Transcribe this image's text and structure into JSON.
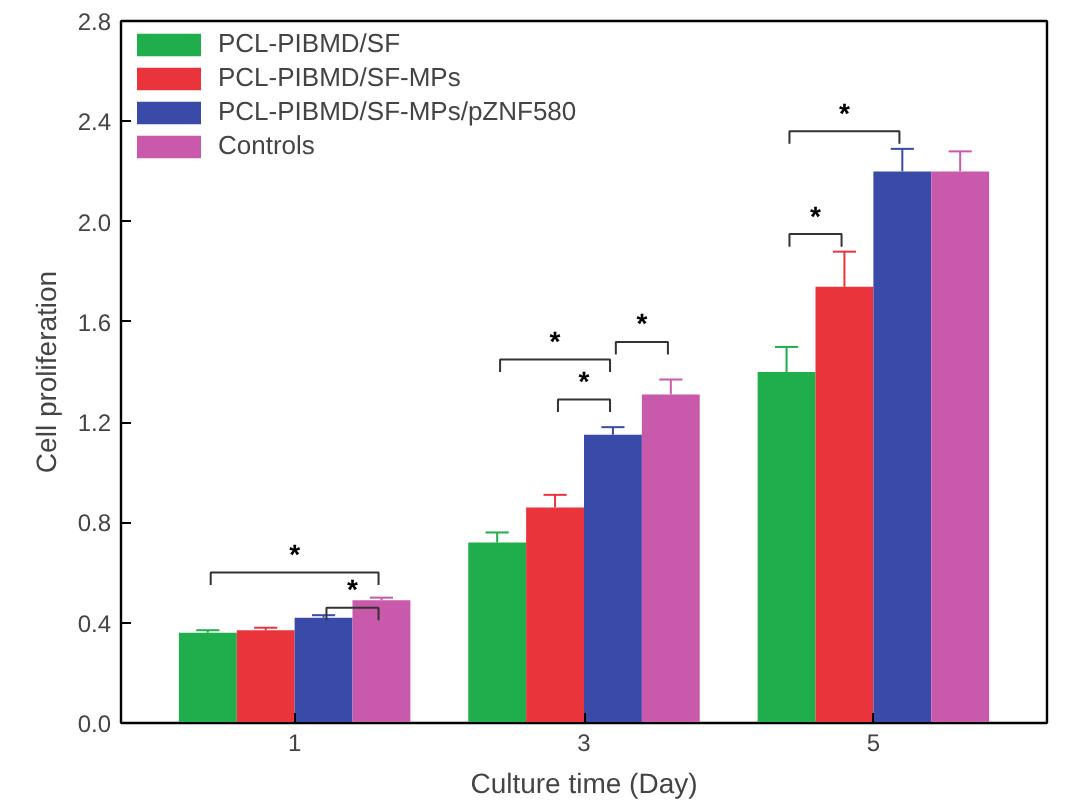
{
  "chart_data": {
    "type": "bar",
    "xlabel": "Culture time (Day)",
    "ylabel": "Cell proliferation",
    "categories": [
      "1",
      "3",
      "5"
    ],
    "series": [
      {
        "name": "PCL-PIBMD/SF",
        "color": "#1fae4b",
        "values": [
          0.36,
          0.72,
          1.4
        ],
        "errors": [
          [
            0.36,
            0.37
          ],
          [
            0.72,
            0.76
          ],
          [
            1.4,
            1.5
          ]
        ]
      },
      {
        "name": "PCL-PIBMD/SF-MPs",
        "color": "#e8343a",
        "values": [
          0.37,
          0.86,
          1.74
        ],
        "errors": [
          [
            0.37,
            0.38
          ],
          [
            0.86,
            0.91
          ],
          [
            1.74,
            1.88
          ]
        ]
      },
      {
        "name": "PCL-PIBMD/SF-MPs/pZNF580",
        "color": "#3a4aa8",
        "values": [
          0.42,
          1.15,
          2.2
        ],
        "errors": [
          [
            0.42,
            0.43
          ],
          [
            1.15,
            1.18
          ],
          [
            2.2,
            2.29
          ]
        ]
      },
      {
        "name": "Controls",
        "color": "#c95aab",
        "values": [
          0.49,
          1.31,
          2.2
        ],
        "errors": [
          [
            0.49,
            0.5
          ],
          [
            1.31,
            1.37
          ],
          [
            2.2,
            2.28
          ]
        ]
      }
    ],
    "ylim": [
      0,
      2.8
    ],
    "yticks": [
      {
        "value": 0,
        "label": "0.0"
      },
      {
        "value": 0.4,
        "label": "0.4"
      },
      {
        "value": 0.8,
        "label": "0.8"
      },
      {
        "value": 1.2,
        "label": "1.2"
      },
      {
        "value": 1.6,
        "label": "1.6"
      },
      {
        "value": 2.0,
        "label": "2.0"
      },
      {
        "value": 2.4,
        "label": "2.4"
      },
      {
        "value": 2.8,
        "label": "2.8"
      }
    ],
    "annotations": [
      "*",
      "*",
      "*",
      "*",
      "*",
      "*",
      "*"
    ],
    "legend": "top left",
    "grid": false
  }
}
